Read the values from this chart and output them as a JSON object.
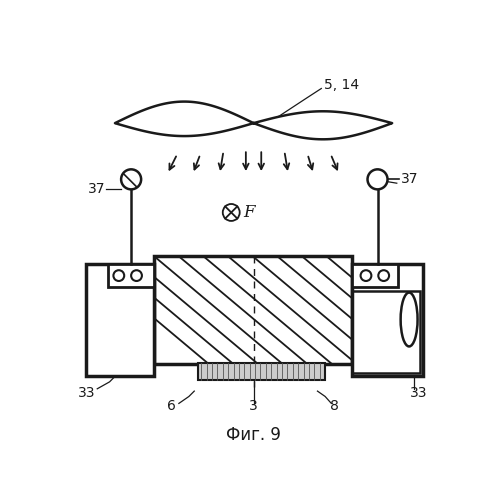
{
  "title": "Фиг. 9",
  "label_5_14": "5, 14",
  "label_37_left": "37",
  "label_37_right": "37",
  "label_33_left": "33",
  "label_33_right": "33",
  "label_6": "6",
  "label_3": "3",
  "label_8": "8",
  "label_F": "F",
  "bg_color": "#ffffff",
  "line_color": "#1a1a1a"
}
